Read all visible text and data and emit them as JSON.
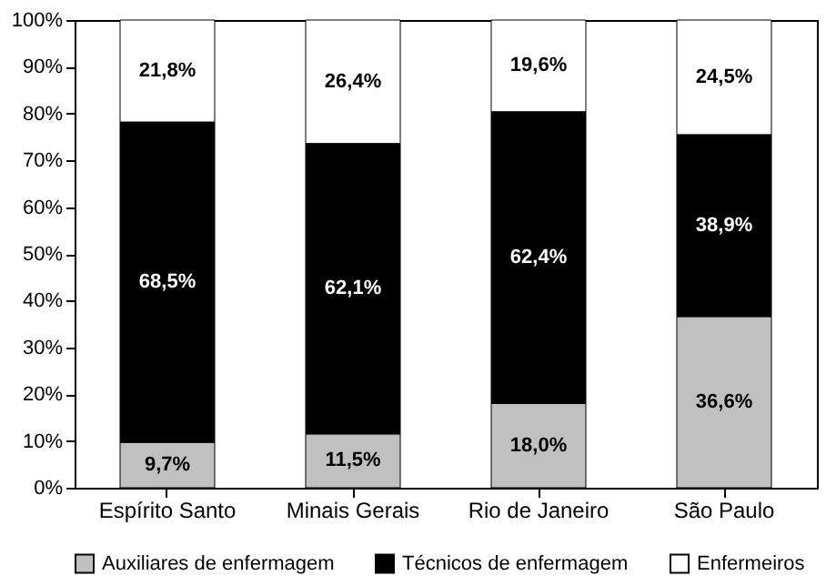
{
  "chart_data": {
    "type": "bar",
    "stacked": true,
    "categories": [
      "Espírito Santo",
      "Minais Gerais",
      "Rio de Janeiro",
      "São Paulo"
    ],
    "series": [
      {
        "name": "Auxiliares de enfermagem",
        "color": "#c0c0c0",
        "values": [
          9.7,
          11.5,
          18.0,
          36.6
        ],
        "value_labels": [
          "9,7%",
          "11,5%",
          "18,0%",
          "36,6%"
        ]
      },
      {
        "name": "Técnicos de enfermagem",
        "color": "#000000",
        "values": [
          68.5,
          62.1,
          62.4,
          38.9
        ],
        "value_labels": [
          "68,5%",
          "62,1%",
          "62,4%",
          "38,9%"
        ]
      },
      {
        "name": "Enfermeiros",
        "color": "#ffffff",
        "values": [
          21.8,
          26.4,
          19.6,
          24.5
        ],
        "value_labels": [
          "21,8%",
          "26,4%",
          "19,6%",
          "24,5%"
        ]
      }
    ],
    "ylim": [
      0,
      100
    ],
    "yticks": [
      {
        "value": 0,
        "label": "0%"
      },
      {
        "value": 10,
        "label": "10%"
      },
      {
        "value": 20,
        "label": "20%"
      },
      {
        "value": 30,
        "label": "30%"
      },
      {
        "value": 40,
        "label": "40%"
      },
      {
        "value": 50,
        "label": "50%"
      },
      {
        "value": 60,
        "label": "60%"
      },
      {
        "value": 70,
        "label": "70%"
      },
      {
        "value": 80,
        "label": "80%"
      },
      {
        "value": 90,
        "label": "90%"
      },
      {
        "value": 100,
        "label": "100%"
      }
    ],
    "grid": false,
    "legend": "bottom"
  }
}
